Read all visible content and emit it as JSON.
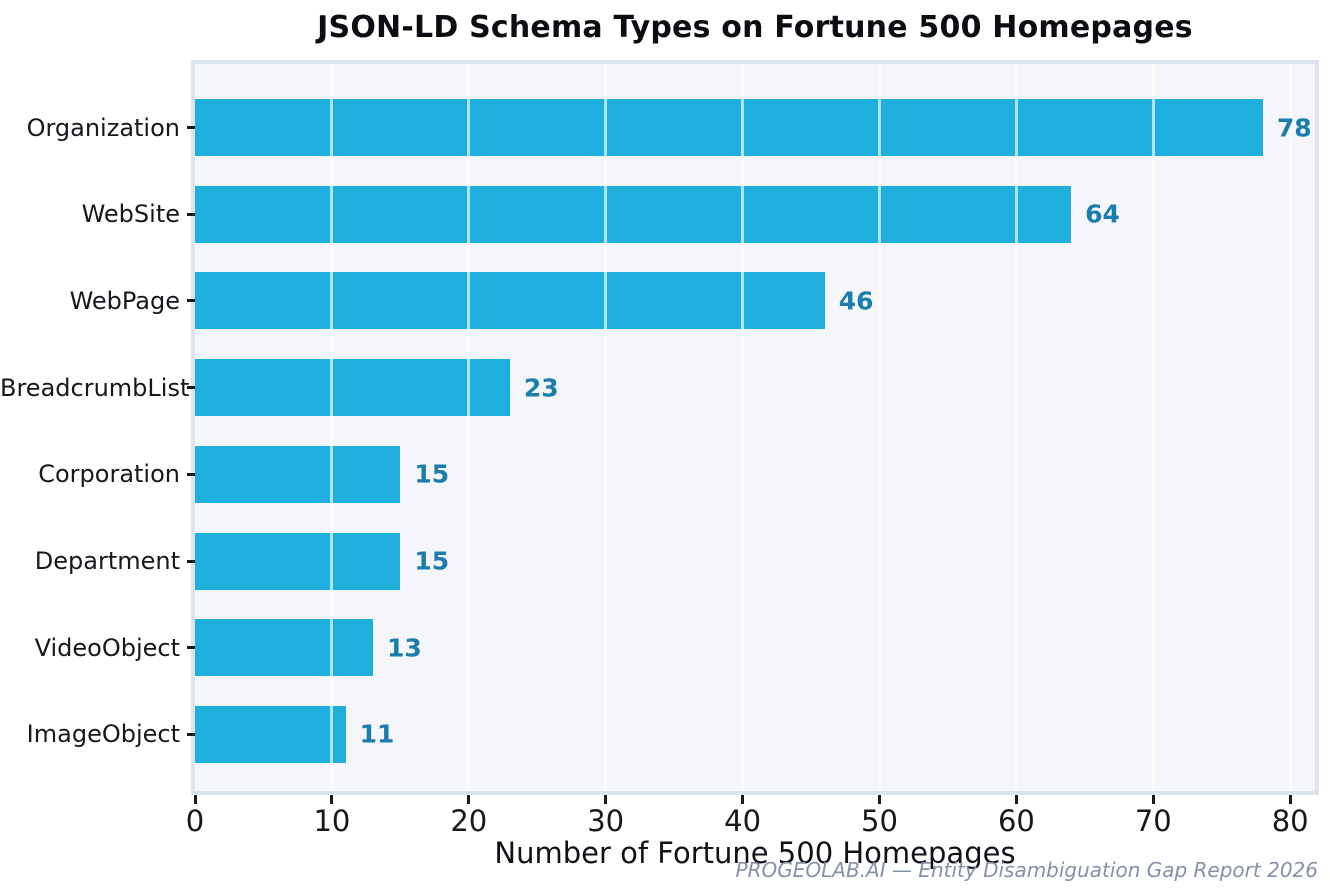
{
  "chart_data": {
    "type": "bar",
    "orientation": "horizontal",
    "title": "JSON-LD Schema Types on Fortune 500 Homepages",
    "categories": [
      "Organization",
      "WebSite",
      "WebPage",
      "BreadcrumbList",
      "Corporation",
      "Department",
      "VideoObject",
      "ImageObject"
    ],
    "values": [
      78,
      64,
      46,
      23,
      15,
      15,
      13,
      11
    ],
    "xlabel": "Number of Fortune 500 Homepages",
    "xlim": [
      0,
      82
    ],
    "xticks": [
      0,
      10,
      20,
      30,
      40,
      50,
      60,
      70,
      80
    ],
    "grid": true,
    "legend": "none",
    "bar_color": "#1fafdc",
    "value_label_color": "#1a7dad",
    "plot_bg": "#f4f6f9"
  },
  "footer": {
    "text": "PROGEOLAB.AI — Entity Disambiguation Gap Report 2026"
  }
}
